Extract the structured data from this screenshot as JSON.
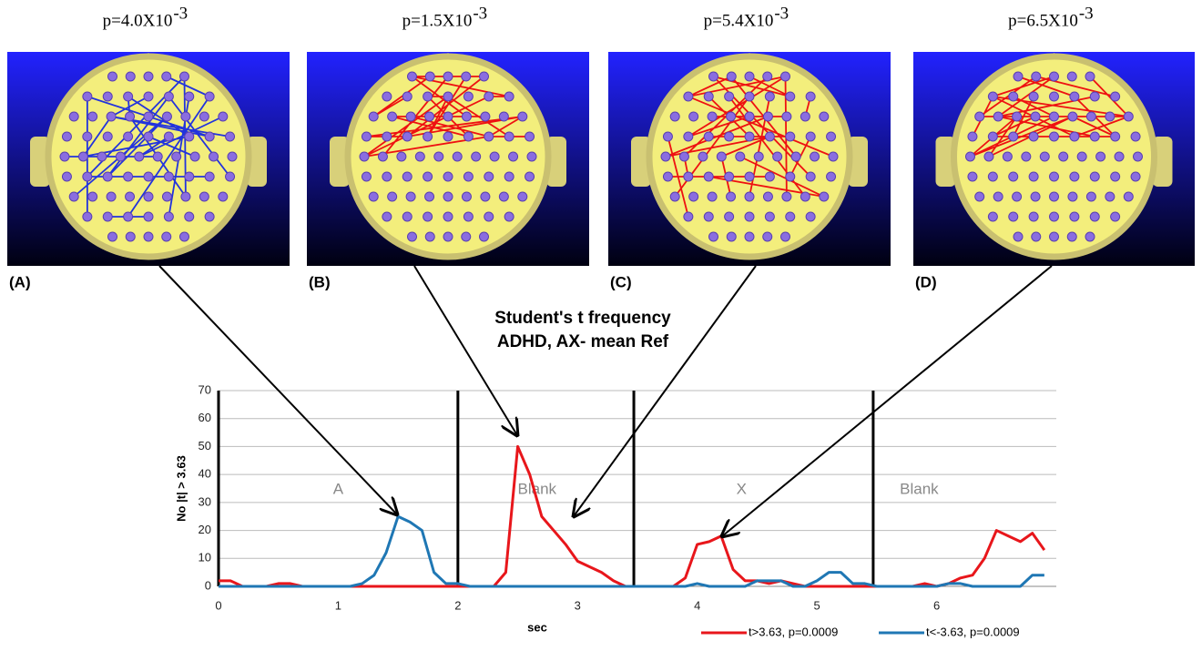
{
  "panels": [
    {
      "letter": "(A)",
      "p_label": "p=4.0X10",
      "p_exponent": "-3"
    },
    {
      "letter": "(B)",
      "p_label": "p=1.5X10",
      "p_exponent": "-3"
    },
    {
      "letter": "(C)",
      "p_label": "p=5.4X10",
      "p_exponent": "-3"
    },
    {
      "letter": "(D)",
      "p_label": "p=6.5X10",
      "p_exponent": "-3"
    }
  ],
  "chart_data": {
    "type": "line",
    "title": [
      "Student's t frequency",
      "ADHD, AX- mean Ref"
    ],
    "y_label": "No |t| > 3.63",
    "x_label": "sec",
    "xlim": [
      0,
      7
    ],
    "xticks": [
      0,
      1,
      2,
      3,
      4,
      5,
      6
    ],
    "ylim": [
      0,
      70
    ],
    "yticks": [
      0,
      10,
      20,
      30,
      40,
      50,
      60,
      70
    ],
    "grid": true,
    "phase_lines": [
      0,
      2,
      3.47,
      5.47
    ],
    "phase_labels": [
      "A",
      "Blank",
      "X",
      "Blank"
    ],
    "legend": "bottom",
    "x": [
      0,
      0.1,
      0.2,
      0.3,
      0.4,
      0.5,
      0.6,
      0.7,
      0.8,
      0.9,
      1,
      1.1,
      1.2,
      1.3,
      1.4,
      1.5,
      1.6,
      1.7,
      1.8,
      1.9,
      2,
      2.1,
      2.2,
      2.3,
      2.4,
      2.5,
      2.6,
      2.7,
      2.8,
      2.9,
      3,
      3.1,
      3.2,
      3.3,
      3.4,
      3.5,
      3.6,
      3.7,
      3.8,
      3.9,
      4,
      4.1,
      4.2,
      4.3,
      4.4,
      4.5,
      4.6,
      4.7,
      4.8,
      4.9,
      5,
      5.1,
      5.2,
      5.3,
      5.4,
      5.5,
      5.6,
      5.7,
      5.8,
      5.9,
      6,
      6.1,
      6.2,
      6.3,
      6.4,
      6.5,
      6.6,
      6.7,
      6.8,
      6.9
    ],
    "series": [
      {
        "name": "t>3.63, p=0.0009",
        "color": "#e8161b",
        "values": [
          2,
          2,
          0,
          0,
          0,
          1,
          1,
          0,
          0,
          0,
          0,
          0,
          0,
          0,
          0,
          0,
          0,
          0,
          0,
          0,
          0,
          0,
          0,
          0,
          5,
          50,
          40,
          25,
          20,
          15,
          9,
          7,
          5,
          2,
          0,
          0,
          0,
          0,
          0,
          3,
          15,
          16,
          18,
          6,
          2,
          2,
          1,
          2,
          1,
          0,
          0,
          0,
          0,
          0,
          0,
          0,
          0,
          0,
          0,
          1,
          0,
          1,
          3,
          4,
          10,
          20,
          18,
          16,
          19,
          13
        ]
      },
      {
        "name": "t<-3.63, p=0.0009",
        "color": "#1f77b4",
        "values": [
          0,
          0,
          0,
          0,
          0,
          0,
          0,
          0,
          0,
          0,
          0,
          0,
          1,
          4,
          12,
          25,
          23,
          20,
          5,
          1,
          1,
          0,
          0,
          0,
          0,
          0,
          0,
          0,
          0,
          0,
          0,
          0,
          0,
          0,
          0,
          0,
          0,
          0,
          0,
          0,
          1,
          0,
          0,
          0,
          0,
          2,
          2,
          2,
          0,
          0,
          2,
          5,
          5,
          1,
          1,
          0,
          0,
          0,
          0,
          0,
          0,
          1,
          1,
          0,
          0,
          0,
          0,
          0,
          4,
          4
        ]
      }
    ]
  }
}
